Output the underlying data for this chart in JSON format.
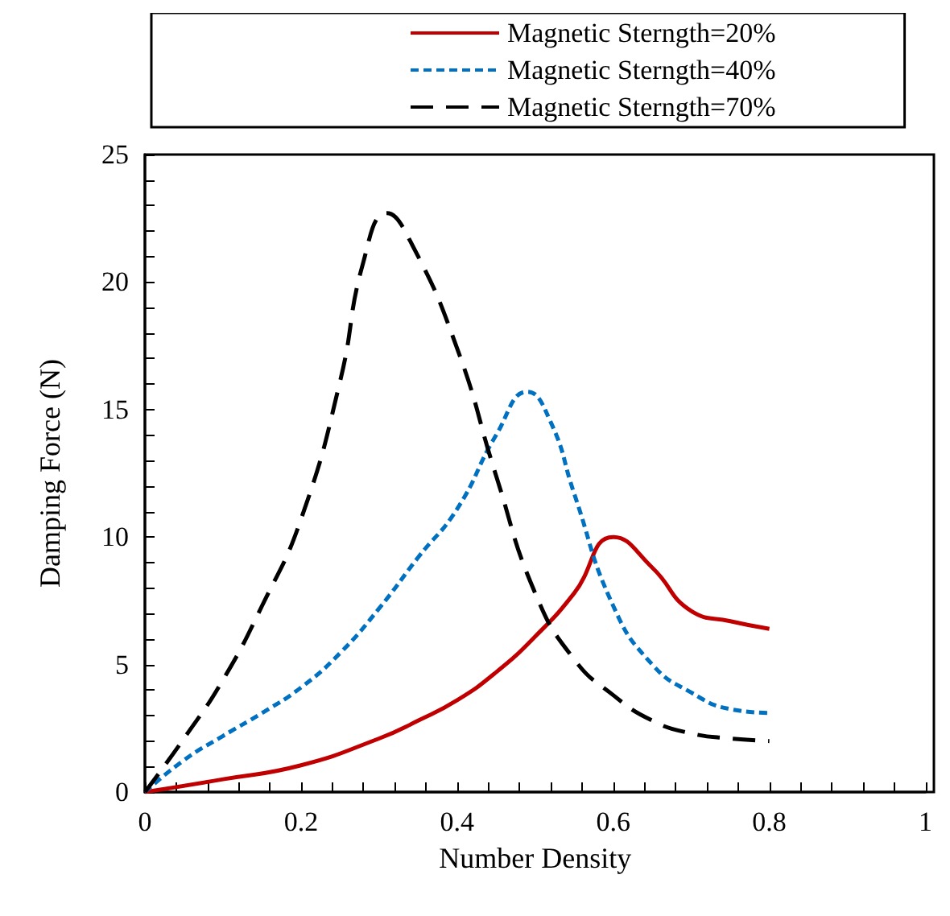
{
  "chart_data": {
    "type": "line",
    "xlabel": "Number Density",
    "ylabel": "Damping Force (N)",
    "xlim": [
      0,
      1
    ],
    "xticks": [
      0,
      0.2,
      0.4,
      0.6,
      0.8,
      1
    ],
    "ylim": [
      0,
      25
    ],
    "yticks": [
      0,
      5,
      10,
      15,
      20,
      25
    ],
    "grid": false,
    "legend": "top",
    "marker": "none",
    "series": [
      {
        "name": "Magnetic Sterngth=20%",
        "color": "#c00000",
        "line_style": "solid",
        "x": [
          0,
          0.1,
          0.2,
          0.3,
          0.35,
          0.4,
          0.45,
          0.5,
          0.55,
          0.6,
          0.65,
          0.7,
          0.75,
          0.8
        ],
        "values": [
          0,
          0.5,
          1.05,
          2.1,
          2.8,
          3.6,
          4.7,
          6.1,
          7.8,
          10.0,
          8.8,
          7.1,
          6.7,
          6.4
        ]
      },
      {
        "name": "Magnetic Sterngth=40%",
        "color": "#0070c0",
        "line_style": "dotted",
        "x": [
          0,
          0.05,
          0.1,
          0.15,
          0.2,
          0.25,
          0.3,
          0.35,
          0.4,
          0.45,
          0.49,
          0.52,
          0.55,
          0.6,
          0.65,
          0.7,
          0.75,
          0.8
        ],
        "values": [
          0,
          1.25,
          2.2,
          3.1,
          4.1,
          5.45,
          7.2,
          9.2,
          11.1,
          14.0,
          15.7,
          14.5,
          11.7,
          7.3,
          5.0,
          3.9,
          3.25,
          3.1
        ]
      },
      {
        "name": "Magnetic Sterngth=70%",
        "color": "#000000",
        "line_style": "dashed",
        "x": [
          0,
          0.05,
          0.1,
          0.15,
          0.2,
          0.25,
          0.28,
          0.31,
          0.34,
          0.4,
          0.45,
          0.5,
          0.55,
          0.6,
          0.65,
          0.7,
          0.75,
          0.8
        ],
        "values": [
          0,
          2.1,
          4.4,
          7.3,
          10.7,
          16.1,
          20.8,
          22.7,
          21.6,
          17.4,
          12.4,
          7.8,
          5.2,
          3.8,
          2.8,
          2.3,
          2.1,
          2.0
        ]
      }
    ]
  }
}
